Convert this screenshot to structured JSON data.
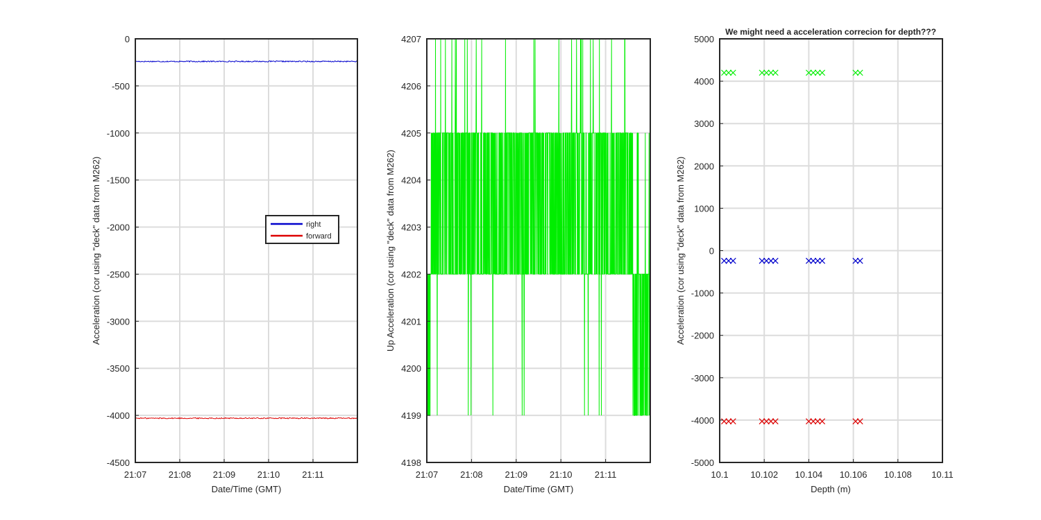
{
  "chart_data": [
    {
      "type": "line",
      "title": "",
      "xlabel": "Date/Time (GMT)",
      "ylabel": "Acceleration (cor using \"deck\" data from M262)",
      "x_ticks": [
        "21:07",
        "21:08",
        "21:09",
        "21:10",
        "21:11"
      ],
      "x_range": [
        "21:07:00",
        "21:12:00"
      ],
      "ylim": [
        -4500,
        0
      ],
      "y_ticks": [
        0,
        -500,
        -1000,
        -1500,
        -2000,
        -2500,
        -3000,
        -3500,
        -4000,
        -4500
      ],
      "grid": true,
      "legend_position": "center-right",
      "series": [
        {
          "name": "right",
          "color": "#0000cc",
          "approx_value": -240,
          "noise": 6
        },
        {
          "name": "forward",
          "color": "#dd0000",
          "approx_value": -4030,
          "noise": 6
        }
      ]
    },
    {
      "type": "line",
      "title": "",
      "xlabel": "Date/Time (GMT)",
      "ylabel": "Up Acceleration (cor using \"deck\" data from M262)",
      "x_ticks": [
        "21:07",
        "21:08",
        "21:09",
        "21:10",
        "21:11"
      ],
      "x_range": [
        "21:07:00",
        "21:12:00"
      ],
      "ylim": [
        4198,
        4207
      ],
      "y_ticks": [
        4198,
        4199,
        4200,
        4201,
        4202,
        4203,
        4204,
        4205,
        4206,
        4207
      ],
      "grid": true,
      "series": [
        {
          "color": "#00ee00",
          "levels": [
            4199,
            4202,
            4205,
            4207
          ],
          "dominant_range": [
            4202,
            4205
          ]
        }
      ]
    },
    {
      "type": "scatter",
      "title": "We might need a acceleration correcion for depth???",
      "xlabel": "Depth (m)",
      "ylabel": "Acceleration (cor using \"deck\" data from M262)",
      "xlim": [
        10.1,
        10.11
      ],
      "ylim": [
        -5000,
        5000
      ],
      "x_ticks": [
        "10.1",
        "10.102",
        "10.104",
        "10.106",
        "10.108",
        "10.11"
      ],
      "y_ticks": [
        5000,
        4000,
        3000,
        2000,
        1000,
        0,
        -1000,
        -2000,
        -3000,
        -4000,
        -5000
      ],
      "grid": true,
      "marker": "x",
      "series": [
        {
          "color": "#00ee00",
          "x": [
            10.1002,
            10.1004,
            10.1006,
            10.1019,
            10.1021,
            10.1023,
            10.1025,
            10.104,
            10.1042,
            10.1044,
            10.1046,
            10.1061,
            10.1063
          ],
          "y": 4200
        },
        {
          "color": "#0000cc",
          "x": [
            10.1002,
            10.1004,
            10.1006,
            10.1019,
            10.1021,
            10.1023,
            10.1025,
            10.104,
            10.1042,
            10.1044,
            10.1046,
            10.1061,
            10.1063
          ],
          "y": -240
        },
        {
          "color": "#dd0000",
          "x": [
            10.1002,
            10.1004,
            10.1006,
            10.1019,
            10.1021,
            10.1023,
            10.1025,
            10.104,
            10.1042,
            10.1044,
            10.1046,
            10.1061,
            10.1063
          ],
          "y": -4030
        }
      ]
    }
  ]
}
